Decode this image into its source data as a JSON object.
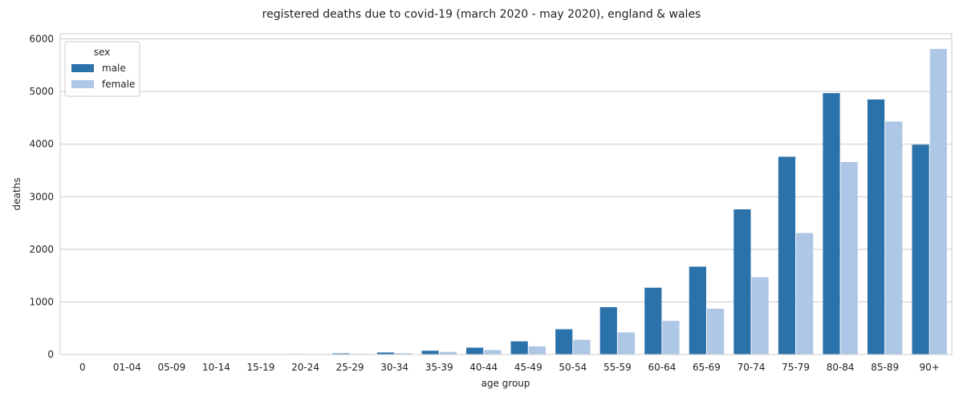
{
  "chart_data": {
    "type": "bar",
    "title": "registered deaths due to covid-19 (march 2020 - may 2020), england & wales",
    "xlabel": "age group",
    "ylabel": "deaths",
    "ylim": [
      0,
      6100
    ],
    "yticks": [
      0,
      1000,
      2000,
      3000,
      4000,
      5000,
      6000
    ],
    "grid": "horizontal",
    "legend_position": "top-left",
    "legend_title": "sex",
    "categories": [
      "0",
      "01-04",
      "05-09",
      "10-14",
      "15-19",
      "20-24",
      "25-29",
      "30-34",
      "35-39",
      "40-44",
      "45-49",
      "50-54",
      "55-59",
      "60-64",
      "65-69",
      "70-74",
      "75-79",
      "80-84",
      "85-89",
      "90+"
    ],
    "series": [
      {
        "name": "male",
        "color": "#2b72ab",
        "values": [
          3,
          2,
          2,
          3,
          6,
          9,
          20,
          38,
          72,
          130,
          250,
          480,
          900,
          1270,
          1670,
          2760,
          3760,
          4970,
          4850,
          3990
        ]
      },
      {
        "name": "female",
        "color": "#afc7e6",
        "values": [
          2,
          1,
          2,
          2,
          4,
          6,
          12,
          24,
          50,
          85,
          155,
          280,
          420,
          640,
          870,
          1470,
          2310,
          3660,
          4430,
          5810
        ]
      }
    ]
  }
}
